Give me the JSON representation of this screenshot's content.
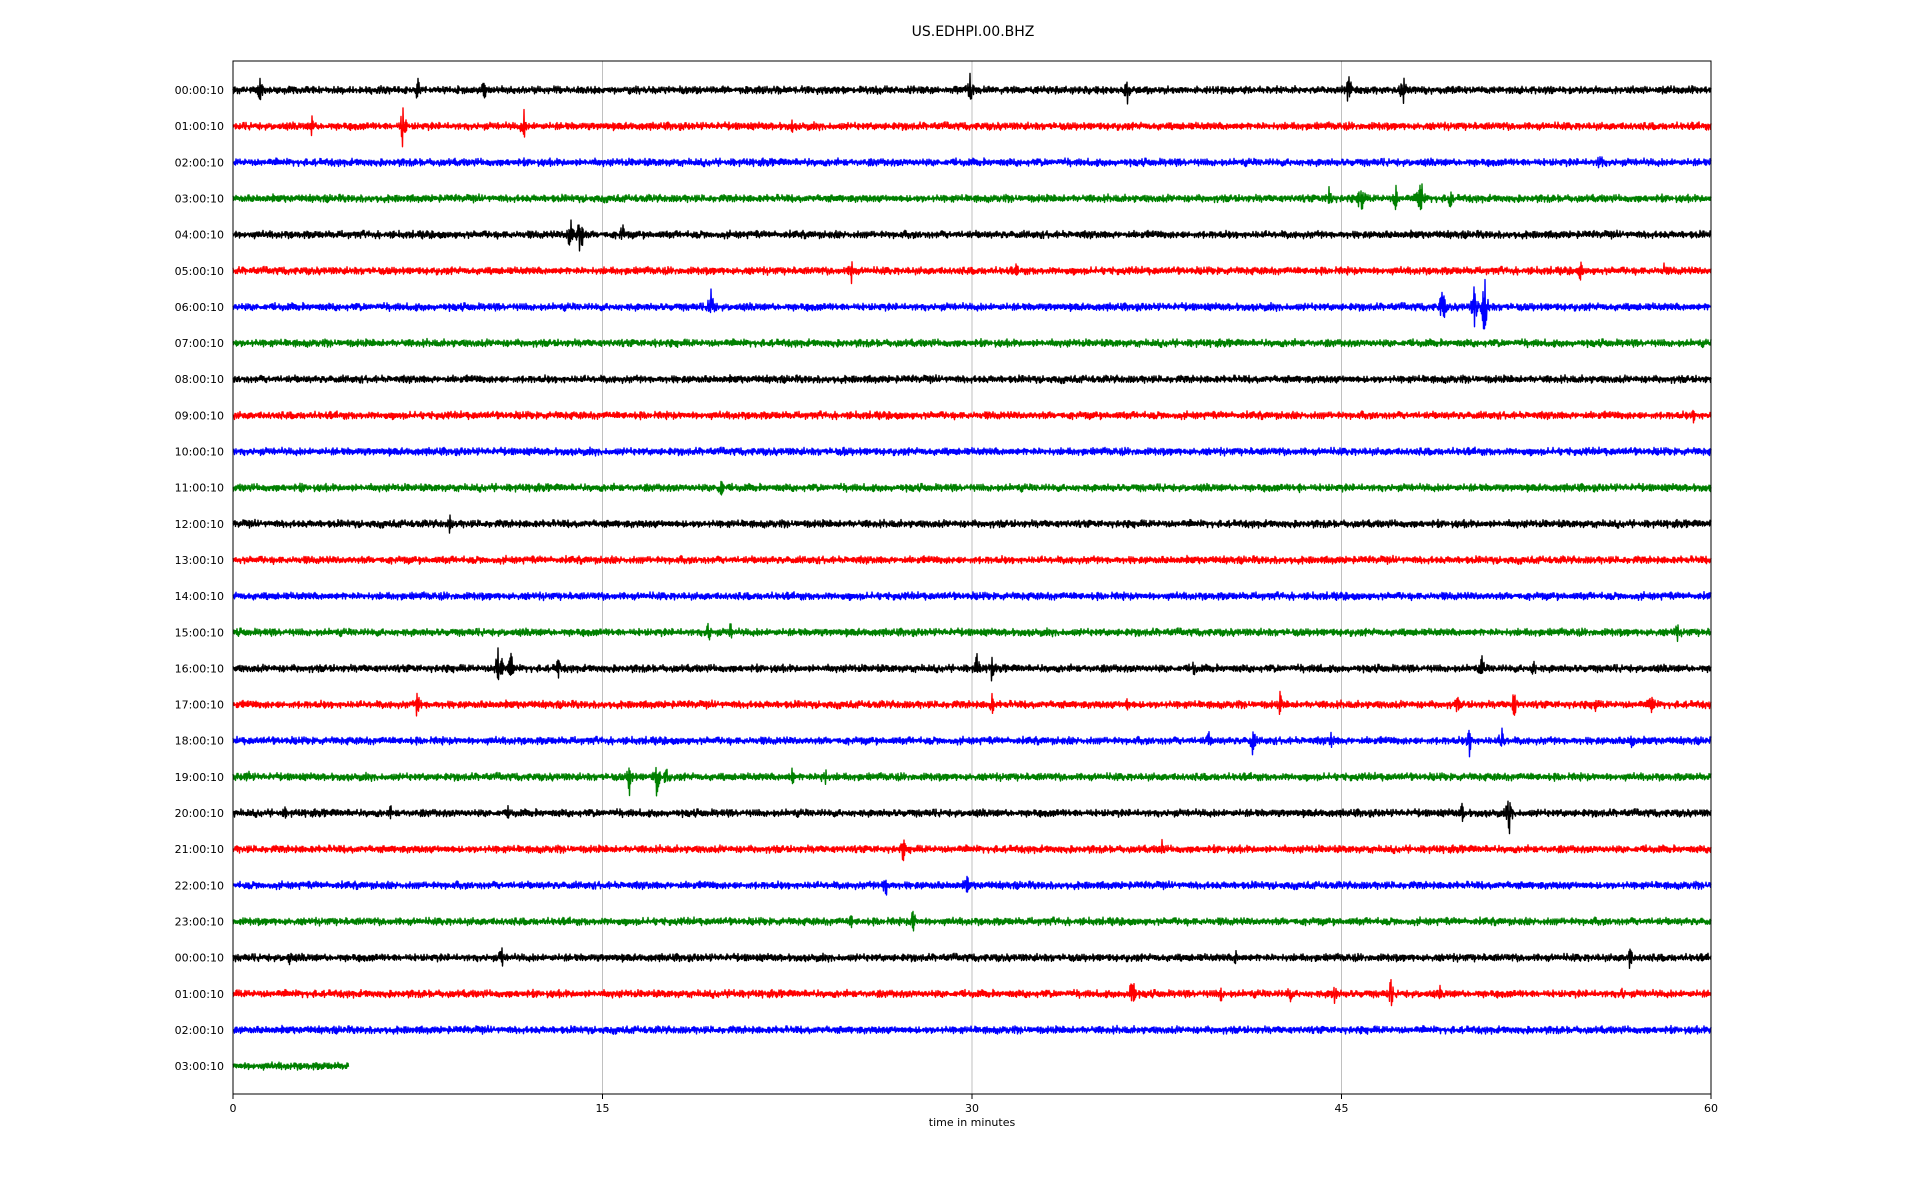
{
  "chart_data": {
    "type": "line",
    "title": "US.EDHPI.00.BHZ",
    "xlabel": "time in minutes",
    "ylabel": "",
    "xlim": [
      0,
      60
    ],
    "xticks": [
      "0",
      "15",
      "30",
      "45",
      "60"
    ],
    "x_tick_values": [
      0,
      15,
      30,
      45,
      60
    ],
    "grid_x": true,
    "colors": [
      "#000000",
      "#ff0000",
      "#0000ff",
      "#008000"
    ],
    "rows": [
      {
        "label": "00:00:10",
        "color": "#000000",
        "end_minute": 60,
        "events": [
          [
            1.1,
            0.5
          ],
          [
            7.5,
            0.5
          ],
          [
            10.2,
            0.5
          ],
          [
            29.9,
            0.9
          ],
          [
            36.3,
            0.6
          ],
          [
            45.3,
            0.8
          ],
          [
            47.5,
            0.7
          ]
        ]
      },
      {
        "label": "01:00:10",
        "color": "#ff0000",
        "end_minute": 60,
        "events": [
          [
            3.2,
            0.4
          ],
          [
            6.9,
            0.9
          ],
          [
            11.8,
            0.7
          ],
          [
            22.7,
            0.3
          ]
        ]
      },
      {
        "label": "02:00:10",
        "color": "#0000ff",
        "end_minute": 60,
        "events": [
          [
            23.3,
            0.2
          ],
          [
            55.5,
            0.5
          ]
        ]
      },
      {
        "label": "03:00:10",
        "color": "#008000",
        "end_minute": 60,
        "events": [
          [
            44.5,
            0.6
          ],
          [
            45.8,
            0.9
          ],
          [
            47.2,
            0.6
          ],
          [
            48.2,
            1.1
          ],
          [
            49.4,
            0.5
          ]
        ]
      },
      {
        "label": "04:00:10",
        "color": "#000000",
        "end_minute": 60,
        "events": [
          [
            13.7,
            0.9
          ],
          [
            14.1,
            1.1
          ],
          [
            15.8,
            0.5
          ]
        ]
      },
      {
        "label": "05:00:10",
        "color": "#ff0000",
        "end_minute": 60,
        "events": [
          [
            25.1,
            0.6
          ],
          [
            31.8,
            0.3
          ],
          [
            54.7,
            0.4
          ],
          [
            58.1,
            0.3
          ]
        ]
      },
      {
        "label": "06:00:10",
        "color": "#0000ff",
        "end_minute": 60,
        "events": [
          [
            19.4,
            0.8
          ],
          [
            49.1,
            0.9
          ],
          [
            50.4,
            0.9
          ],
          [
            50.8,
            1.3
          ]
        ]
      },
      {
        "label": "07:00:10",
        "color": "#008000",
        "end_minute": 60,
        "events": [
          [
            17.1,
            0.2
          ]
        ]
      },
      {
        "label": "08:00:10",
        "color": "#000000",
        "end_minute": 60,
        "events": []
      },
      {
        "label": "09:00:10",
        "color": "#ff0000",
        "end_minute": 60,
        "events": [
          [
            59.3,
            0.3
          ]
        ]
      },
      {
        "label": "10:00:10",
        "color": "#0000ff",
        "end_minute": 60,
        "events": [
          [
            24.8,
            0.2
          ]
        ]
      },
      {
        "label": "11:00:10",
        "color": "#008000",
        "end_minute": 60,
        "events": [
          [
            2.8,
            0.2
          ],
          [
            19.8,
            0.6
          ],
          [
            43.3,
            0.2
          ]
        ]
      },
      {
        "label": "12:00:10",
        "color": "#000000",
        "end_minute": 60,
        "events": [
          [
            8.8,
            0.4
          ],
          [
            50.1,
            0.2
          ]
        ]
      },
      {
        "label": "13:00:10",
        "color": "#ff0000",
        "end_minute": 60,
        "events": []
      },
      {
        "label": "14:00:10",
        "color": "#0000ff",
        "end_minute": 60,
        "events": []
      },
      {
        "label": "15:00:10",
        "color": "#008000",
        "end_minute": 60,
        "events": [
          [
            19.3,
            0.5
          ],
          [
            20.2,
            0.4
          ],
          [
            58.6,
            0.5
          ]
        ]
      },
      {
        "label": "16:00:10",
        "color": "#000000",
        "end_minute": 60,
        "events": [
          [
            10.8,
            1.3
          ],
          [
            11.3,
            0.7
          ],
          [
            13.2,
            0.4
          ],
          [
            30.2,
            0.6
          ],
          [
            30.8,
            0.5
          ],
          [
            39.0,
            0.4
          ],
          [
            44.1,
            0.3
          ],
          [
            50.7,
            0.5
          ],
          [
            52.8,
            0.4
          ]
        ]
      },
      {
        "label": "17:00:10",
        "color": "#ff0000",
        "end_minute": 60,
        "events": [
          [
            7.5,
            0.7
          ],
          [
            30.8,
            0.5
          ],
          [
            36.3,
            0.3
          ],
          [
            42.5,
            0.5
          ],
          [
            49.7,
            0.4
          ],
          [
            52.0,
            0.6
          ],
          [
            55.3,
            0.4
          ],
          [
            57.6,
            0.6
          ]
        ]
      },
      {
        "label": "18:00:10",
        "color": "#0000ff",
        "end_minute": 60,
        "events": [
          [
            39.6,
            0.4
          ],
          [
            41.4,
            0.6
          ],
          [
            44.6,
            0.4
          ],
          [
            50.2,
            0.6
          ],
          [
            51.5,
            0.6
          ],
          [
            56.8,
            0.4
          ]
        ]
      },
      {
        "label": "19:00:10",
        "color": "#008000",
        "end_minute": 60,
        "events": [
          [
            0.6,
            0.4
          ],
          [
            16.1,
            0.7
          ],
          [
            17.2,
            0.8
          ],
          [
            17.6,
            0.5
          ],
          [
            22.7,
            0.4
          ],
          [
            24.0,
            0.6
          ]
        ]
      },
      {
        "label": "20:00:10",
        "color": "#000000",
        "end_minute": 60,
        "events": [
          [
            2.1,
            0.3
          ],
          [
            6.4,
            0.3
          ],
          [
            11.2,
            0.4
          ],
          [
            49.9,
            0.4
          ],
          [
            51.8,
            0.9
          ]
        ]
      },
      {
        "label": "21:00:10",
        "color": "#ff0000",
        "end_minute": 60,
        "events": [
          [
            27.2,
            0.5
          ],
          [
            37.7,
            0.4
          ]
        ]
      },
      {
        "label": "22:00:10",
        "color": "#0000ff",
        "end_minute": 60,
        "events": [
          [
            26.5,
            0.6
          ],
          [
            29.8,
            0.4
          ]
        ]
      },
      {
        "label": "23:00:10",
        "color": "#008000",
        "end_minute": 60,
        "events": [
          [
            25.1,
            0.3
          ],
          [
            27.6,
            0.6
          ]
        ]
      },
      {
        "label": "00:00:10",
        "color": "#000000",
        "end_minute": 60,
        "events": [
          [
            2.3,
            0.3
          ],
          [
            10.9,
            0.5
          ],
          [
            40.7,
            0.3
          ],
          [
            56.7,
            0.5
          ]
        ]
      },
      {
        "label": "01:00:10",
        "color": "#ff0000",
        "end_minute": 60,
        "events": [
          [
            20.3,
            0.3
          ],
          [
            36.5,
            0.9
          ],
          [
            40.1,
            0.4
          ],
          [
            42.9,
            0.4
          ],
          [
            44.7,
            0.5
          ],
          [
            47.0,
            0.6
          ],
          [
            49.0,
            0.3
          ],
          [
            56.4,
            0.3
          ]
        ]
      },
      {
        "label": "02:00:10",
        "color": "#0000ff",
        "end_minute": 60,
        "events": []
      },
      {
        "label": "03:00:10",
        "color": "#008000",
        "end_minute": 4.7,
        "events": []
      }
    ]
  }
}
